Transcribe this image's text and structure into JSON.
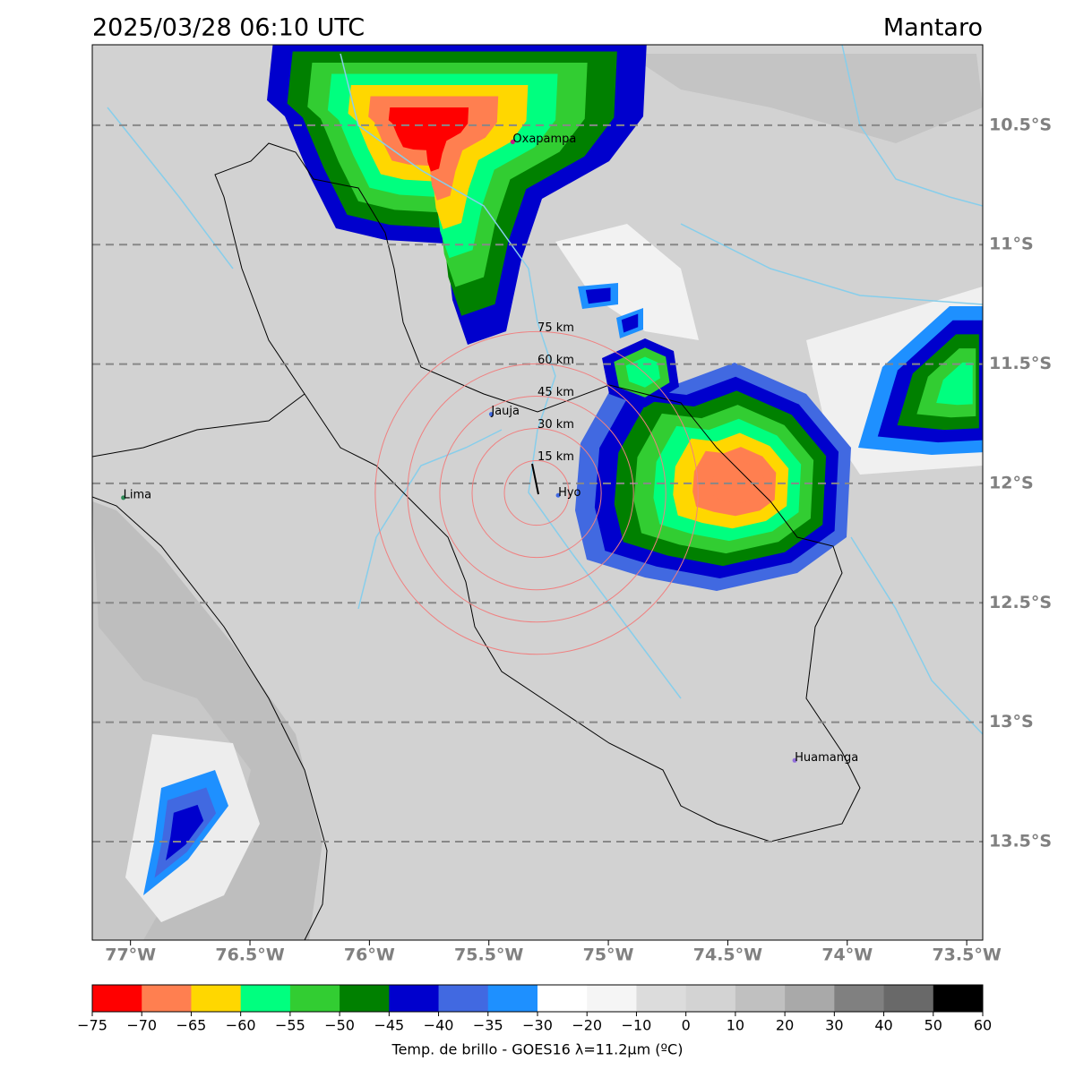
{
  "map": {
    "title": "2025/03/28 06:10 UTC",
    "region": "Mantaro",
    "lon_ticks": [
      {
        "value": -77,
        "label": "77°W"
      },
      {
        "value": -76.5,
        "label": "76.5°W"
      },
      {
        "value": -76,
        "label": "76°W"
      },
      {
        "value": -75.5,
        "label": "75.5°W"
      },
      {
        "value": -75,
        "label": "75°W"
      },
      {
        "value": -74.5,
        "label": "74.5°W"
      },
      {
        "value": -74,
        "label": "74°W"
      },
      {
        "value": -73.5,
        "label": "73.5°W"
      }
    ],
    "lat_ticks": [
      {
        "value": -10.5,
        "label": "10.5°S"
      },
      {
        "value": -11,
        "label": "11°S"
      },
      {
        "value": -11.5,
        "label": "11.5°S"
      },
      {
        "value": -12,
        "label": "12°S"
      },
      {
        "value": -12.5,
        "label": "12.5°S"
      },
      {
        "value": -13,
        "label": "13°S"
      },
      {
        "value": -13.5,
        "label": "13.5°S"
      }
    ],
    "cities": [
      "Oxapampa",
      "Jauja",
      "Hyo",
      "Lima",
      "Huamanga"
    ],
    "rings": [
      {
        "value": 15,
        "label": "15 km"
      },
      {
        "value": 30,
        "label": "30 km"
      },
      {
        "value": 45,
        "label": "45 km"
      },
      {
        "value": 60,
        "label": "60 km"
      },
      {
        "value": 75,
        "label": "75 km"
      }
    ]
  },
  "colorbar": {
    "label": "Temp. de brillo - GOES16 λ=11.2μm (ºC)",
    "ticks": [
      {
        "value": -75,
        "label": "−75"
      },
      {
        "value": -70,
        "label": "−70"
      },
      {
        "value": -65,
        "label": "−65"
      },
      {
        "value": -60,
        "label": "−60"
      },
      {
        "value": -55,
        "label": "−55"
      },
      {
        "value": -50,
        "label": "−50"
      },
      {
        "value": -45,
        "label": "−45"
      },
      {
        "value": -40,
        "label": "−40"
      },
      {
        "value": -35,
        "label": "−35"
      },
      {
        "value": -30,
        "label": "−30"
      },
      {
        "value": -20,
        "label": "−20"
      },
      {
        "value": -10,
        "label": "−10"
      },
      0,
      10,
      20,
      30,
      40,
      50,
      60
    ],
    "colors": [
      "#ff0000",
      "#ff7f50",
      "#ffd700",
      "#00ff7f",
      "#32cd32",
      "#008000",
      "#0000cd",
      "#4169e1",
      "#1e90ff",
      "#ffffff",
      "#f5f5f5",
      "#dcdcdc",
      "#d3d3d3",
      "#c0c0c0",
      "#a9a9a9",
      "#808080",
      "#696969",
      "#000000"
    ]
  }
}
